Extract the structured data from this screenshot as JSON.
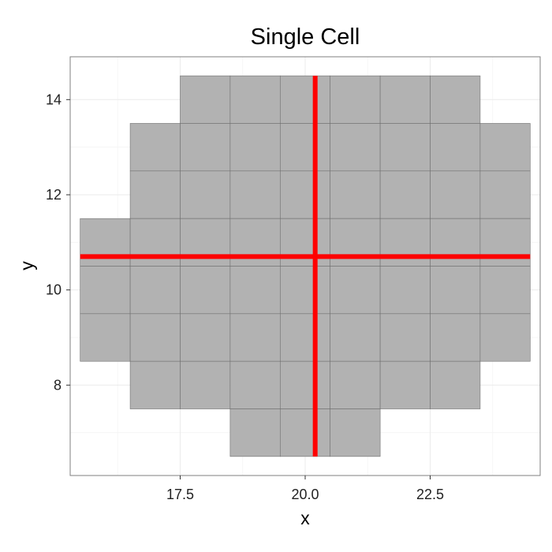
{
  "chart_data": {
    "type": "heatmap",
    "title": "Single Cell",
    "xlabel": "x",
    "ylabel": "y",
    "xlim": [
      15.3,
      24.7
    ],
    "ylim": [
      6.1,
      14.9
    ],
    "grid": true,
    "x_ticks": [
      {
        "value": 17.5,
        "label": "17.5"
      },
      {
        "value": 20.0,
        "label": "20.0"
      },
      {
        "value": 22.5,
        "label": "22.5"
      }
    ],
    "y_ticks": [
      {
        "value": 8,
        "label": "8"
      },
      {
        "value": 10,
        "label": "10"
      },
      {
        "value": 12,
        "label": "12"
      },
      {
        "value": 14,
        "label": "14"
      }
    ],
    "tile_fill": "#b2b2b2",
    "tile_stroke": "#6f6f6f",
    "line_color": "#ff0000",
    "tiles": [
      {
        "x": 18,
        "y": 14
      },
      {
        "x": 19,
        "y": 14
      },
      {
        "x": 20,
        "y": 14
      },
      {
        "x": 21,
        "y": 14
      },
      {
        "x": 22,
        "y": 14
      },
      {
        "x": 23,
        "y": 14
      },
      {
        "x": 17,
        "y": 13
      },
      {
        "x": 18,
        "y": 13
      },
      {
        "x": 19,
        "y": 13
      },
      {
        "x": 20,
        "y": 13
      },
      {
        "x": 21,
        "y": 13
      },
      {
        "x": 22,
        "y": 13
      },
      {
        "x": 23,
        "y": 13
      },
      {
        "x": 24,
        "y": 13
      },
      {
        "x": 17,
        "y": 12
      },
      {
        "x": 18,
        "y": 12
      },
      {
        "x": 19,
        "y": 12
      },
      {
        "x": 20,
        "y": 12
      },
      {
        "x": 21,
        "y": 12
      },
      {
        "x": 22,
        "y": 12
      },
      {
        "x": 23,
        "y": 12
      },
      {
        "x": 24,
        "y": 12
      },
      {
        "x": 16,
        "y": 11
      },
      {
        "x": 17,
        "y": 11
      },
      {
        "x": 18,
        "y": 11
      },
      {
        "x": 19,
        "y": 11
      },
      {
        "x": 20,
        "y": 11
      },
      {
        "x": 21,
        "y": 11
      },
      {
        "x": 22,
        "y": 11
      },
      {
        "x": 23,
        "y": 11
      },
      {
        "x": 24,
        "y": 11
      },
      {
        "x": 16,
        "y": 10
      },
      {
        "x": 17,
        "y": 10
      },
      {
        "x": 18,
        "y": 10
      },
      {
        "x": 19,
        "y": 10
      },
      {
        "x": 20,
        "y": 10
      },
      {
        "x": 21,
        "y": 10
      },
      {
        "x": 22,
        "y": 10
      },
      {
        "x": 23,
        "y": 10
      },
      {
        "x": 24,
        "y": 10
      },
      {
        "x": 16,
        "y": 9
      },
      {
        "x": 17,
        "y": 9
      },
      {
        "x": 18,
        "y": 9
      },
      {
        "x": 19,
        "y": 9
      },
      {
        "x": 20,
        "y": 9
      },
      {
        "x": 21,
        "y": 9
      },
      {
        "x": 22,
        "y": 9
      },
      {
        "x": 23,
        "y": 9
      },
      {
        "x": 24,
        "y": 9
      },
      {
        "x": 17,
        "y": 8
      },
      {
        "x": 18,
        "y": 8
      },
      {
        "x": 19,
        "y": 8
      },
      {
        "x": 20,
        "y": 8
      },
      {
        "x": 21,
        "y": 8
      },
      {
        "x": 22,
        "y": 8
      },
      {
        "x": 23,
        "y": 8
      },
      {
        "x": 19,
        "y": 7
      },
      {
        "x": 20,
        "y": 7
      },
      {
        "x": 21,
        "y": 7
      }
    ],
    "vertical_line": {
      "x": 20.2,
      "y_from": 6.5,
      "y_to": 14.5
    },
    "horizontal_line": {
      "y": 10.7,
      "x_from": 15.5,
      "x_to": 24.5
    }
  }
}
